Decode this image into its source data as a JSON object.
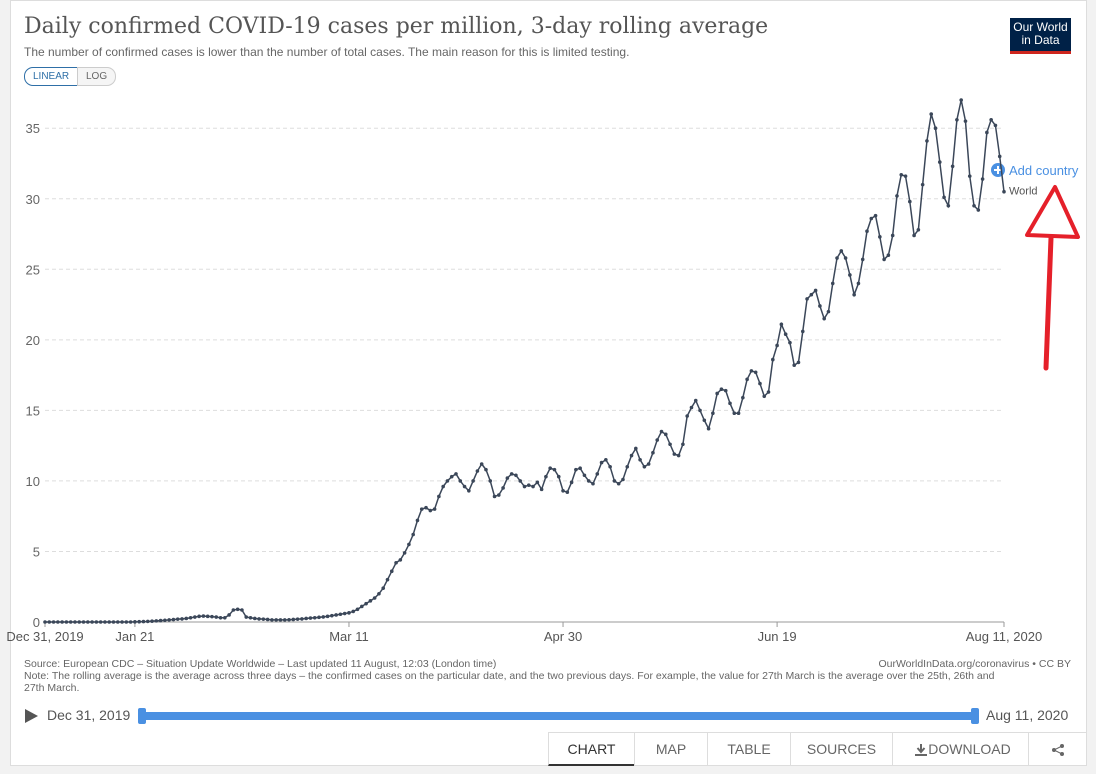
{
  "header": {
    "title": "Daily confirmed COVID-19 cases per million, 3-day rolling average",
    "subtitle": "The number of confirmed cases is lower than the number of total cases. The main reason for this is limited testing.",
    "scale_buttons": [
      "LINEAR",
      "LOG"
    ],
    "logo": [
      "Our World",
      "in Data"
    ]
  },
  "add_country": "Add country",
  "chart_data": {
    "type": "line",
    "x": [
      "2019-12-31",
      "2020-01-01",
      "2020-01-02",
      "2020-01-03",
      "2020-01-04",
      "2020-01-05",
      "2020-01-06",
      "2020-01-07",
      "2020-01-08",
      "2020-01-09",
      "2020-01-10",
      "2020-01-11",
      "2020-01-12",
      "2020-01-13",
      "2020-01-14",
      "2020-01-15",
      "2020-01-16",
      "2020-01-17",
      "2020-01-18",
      "2020-01-19",
      "2020-01-20",
      "2020-01-21",
      "2020-01-22",
      "2020-01-23",
      "2020-01-24",
      "2020-01-25",
      "2020-01-26",
      "2020-01-27",
      "2020-01-28",
      "2020-01-29",
      "2020-01-30",
      "2020-01-31",
      "2020-02-01",
      "2020-02-02",
      "2020-02-03",
      "2020-02-04",
      "2020-02-05",
      "2020-02-06",
      "2020-02-07",
      "2020-02-08",
      "2020-02-09",
      "2020-02-10",
      "2020-02-11",
      "2020-02-12",
      "2020-02-13",
      "2020-02-14",
      "2020-02-15",
      "2020-02-16",
      "2020-02-17",
      "2020-02-18",
      "2020-02-19",
      "2020-02-20",
      "2020-02-21",
      "2020-02-22",
      "2020-02-23",
      "2020-02-24",
      "2020-02-25",
      "2020-02-26",
      "2020-02-27",
      "2020-02-28",
      "2020-02-29",
      "2020-03-01",
      "2020-03-02",
      "2020-03-03",
      "2020-03-04",
      "2020-03-05",
      "2020-03-06",
      "2020-03-07",
      "2020-03-08",
      "2020-03-09",
      "2020-03-10",
      "2020-03-11",
      "2020-03-12",
      "2020-03-13",
      "2020-03-14",
      "2020-03-15",
      "2020-03-16",
      "2020-03-17",
      "2020-03-18",
      "2020-03-19",
      "2020-03-20",
      "2020-03-21",
      "2020-03-22",
      "2020-03-23",
      "2020-03-24",
      "2020-03-25",
      "2020-03-26",
      "2020-03-27",
      "2020-03-28",
      "2020-03-29",
      "2020-03-30",
      "2020-03-31",
      "2020-04-01",
      "2020-04-02",
      "2020-04-03",
      "2020-04-04",
      "2020-04-05",
      "2020-04-06",
      "2020-04-07",
      "2020-04-08",
      "2020-04-09",
      "2020-04-10",
      "2020-04-11",
      "2020-04-12",
      "2020-04-13",
      "2020-04-14",
      "2020-04-15",
      "2020-04-16",
      "2020-04-17",
      "2020-04-18",
      "2020-04-19",
      "2020-04-20",
      "2020-04-21",
      "2020-04-22",
      "2020-04-23",
      "2020-04-24",
      "2020-04-25",
      "2020-04-26",
      "2020-04-27",
      "2020-04-28",
      "2020-04-29",
      "2020-04-30",
      "2020-05-01",
      "2020-05-02",
      "2020-05-03",
      "2020-05-04",
      "2020-05-05",
      "2020-05-06",
      "2020-05-07",
      "2020-05-08",
      "2020-05-09",
      "2020-05-10",
      "2020-05-11",
      "2020-05-12",
      "2020-05-13",
      "2020-05-14",
      "2020-05-15",
      "2020-05-16",
      "2020-05-17",
      "2020-05-18",
      "2020-05-19",
      "2020-05-20",
      "2020-05-21",
      "2020-05-22",
      "2020-05-23",
      "2020-05-24",
      "2020-05-25",
      "2020-05-26",
      "2020-05-27",
      "2020-05-28",
      "2020-05-29",
      "2020-05-30",
      "2020-05-31",
      "2020-06-01",
      "2020-06-02",
      "2020-06-03",
      "2020-06-04",
      "2020-06-05",
      "2020-06-06",
      "2020-06-07",
      "2020-06-08",
      "2020-06-09",
      "2020-06-10",
      "2020-06-11",
      "2020-06-12",
      "2020-06-13",
      "2020-06-14",
      "2020-06-15",
      "2020-06-16",
      "2020-06-17",
      "2020-06-18",
      "2020-06-19",
      "2020-06-20",
      "2020-06-21",
      "2020-06-22",
      "2020-06-23",
      "2020-06-24",
      "2020-06-25",
      "2020-06-26",
      "2020-06-27",
      "2020-06-28",
      "2020-06-29",
      "2020-06-30",
      "2020-07-01",
      "2020-07-02",
      "2020-07-03",
      "2020-07-04",
      "2020-07-05",
      "2020-07-06",
      "2020-07-07",
      "2020-07-08",
      "2020-07-09",
      "2020-07-10",
      "2020-07-11",
      "2020-07-12",
      "2020-07-13",
      "2020-07-14",
      "2020-07-15",
      "2020-07-16",
      "2020-07-17",
      "2020-07-18",
      "2020-07-19",
      "2020-07-20",
      "2020-07-21",
      "2020-07-22",
      "2020-07-23",
      "2020-07-24",
      "2020-07-25",
      "2020-07-26",
      "2020-07-27",
      "2020-07-28",
      "2020-07-29",
      "2020-07-30",
      "2020-07-31",
      "2020-08-01",
      "2020-08-02",
      "2020-08-03",
      "2020-08-04",
      "2020-08-05",
      "2020-08-06",
      "2020-08-07",
      "2020-08-08",
      "2020-08-09",
      "2020-08-10",
      "2020-08-11"
    ],
    "series": [
      {
        "name": "World",
        "color": "#3b4759",
        "values": [
          0,
          0,
          0,
          0,
          0,
          0,
          0,
          0,
          0,
          0,
          0,
          0,
          0,
          0,
          0,
          0,
          0,
          0,
          0,
          0,
          0,
          0.01,
          0.02,
          0.03,
          0.04,
          0.06,
          0.08,
          0.1,
          0.12,
          0.15,
          0.17,
          0.2,
          0.22,
          0.25,
          0.3,
          0.35,
          0.4,
          0.42,
          0.4,
          0.38,
          0.35,
          0.3,
          0.3,
          0.5,
          0.85,
          0.9,
          0.85,
          0.35,
          0.3,
          0.25,
          0.22,
          0.2,
          0.18,
          0.15,
          0.15,
          0.15,
          0.15,
          0.16,
          0.18,
          0.2,
          0.22,
          0.25,
          0.28,
          0.3,
          0.33,
          0.36,
          0.4,
          0.45,
          0.5,
          0.55,
          0.6,
          0.65,
          0.75,
          0.9,
          1.1,
          1.3,
          1.5,
          1.7,
          2.0,
          2.4,
          3.0,
          3.6,
          4.2,
          4.4,
          4.9,
          5.5,
          6.2,
          7.2,
          8.0,
          8.1,
          7.9,
          8.0,
          8.9,
          9.6,
          10.0,
          10.3,
          10.5,
          10.0,
          9.6,
          9.3,
          10.0,
          10.7,
          11.2,
          10.8,
          10.0,
          8.9,
          9.0,
          9.5,
          10.2,
          10.5,
          10.4,
          10.0,
          9.6,
          9.7,
          9.6,
          9.9,
          9.4,
          10.3,
          10.9,
          10.8,
          10.3,
          9.3,
          9.2,
          9.9,
          10.8,
          10.9,
          10.4,
          10.0,
          9.8,
          10.5,
          11.3,
          11.5,
          11.0,
          10.0,
          9.8,
          10.1,
          11.0,
          11.8,
          12.3,
          11.5,
          11.0,
          11.2,
          12.0,
          12.9,
          13.5,
          13.3,
          12.6,
          11.9,
          11.8,
          12.6,
          14.6,
          15.2,
          15.7,
          15.0,
          14.3,
          13.7,
          14.8,
          16.2,
          16.5,
          16.4,
          15.5,
          14.8,
          14.8,
          15.9,
          17.2,
          17.8,
          17.7,
          16.9,
          16.0,
          16.3,
          18.6,
          19.6,
          21.1,
          20.4,
          19.8,
          18.2,
          18.4,
          20.6,
          22.9,
          23.2,
          23.5,
          22.4,
          21.5,
          22.0,
          24.0,
          25.8,
          26.3,
          25.8,
          24.6,
          23.2,
          24.0,
          25.7,
          27.7,
          28.6,
          28.8,
          27.3,
          25.7,
          26.0,
          27.4,
          30.2,
          31.7,
          31.6,
          29.8,
          27.4,
          27.8,
          31.0,
          34.1,
          36.0,
          35.0,
          32.6,
          30.1,
          29.5,
          32.3,
          35.6,
          37.0,
          35.5,
          31.6,
          29.5,
          29.2,
          31.4,
          34.7,
          35.6,
          35.2,
          33.0,
          30.5
        ]
      }
    ],
    "xlim": [
      "2019-12-31",
      "2020-08-11"
    ],
    "xticks": [
      {
        "value": "2019-12-31",
        "label": "Dec 31, 2019"
      },
      {
        "value": "2020-01-21",
        "label": "Jan 21"
      },
      {
        "value": "2020-03-11",
        "label": "Mar 11"
      },
      {
        "value": "2020-04-30",
        "label": "Apr 30"
      },
      {
        "value": "2020-06-19",
        "label": "Jun 19"
      },
      {
        "value": "2020-08-11",
        "label": "Aug 11, 2020"
      }
    ],
    "ylim": [
      0,
      37
    ],
    "yticks": [
      0,
      5,
      10,
      15,
      20,
      25,
      30,
      35
    ],
    "grid": true,
    "log_scale": false
  },
  "footer": {
    "source": "Source: European CDC – Situation Update Worldwide – Last updated 11 August, 12:03 (London time)",
    "license": "OurWorldInData.org/coronavirus • CC BY",
    "note": "Note: The rolling average is the average across three days – the confirmed cases on the particular date, and the two previous days. For example, the value for 27th March is the average over the 25th, 26th and 27th March."
  },
  "tabs": [
    "CHART",
    "MAP",
    "TABLE",
    "SOURCES",
    "DOWNLOAD"
  ]
}
